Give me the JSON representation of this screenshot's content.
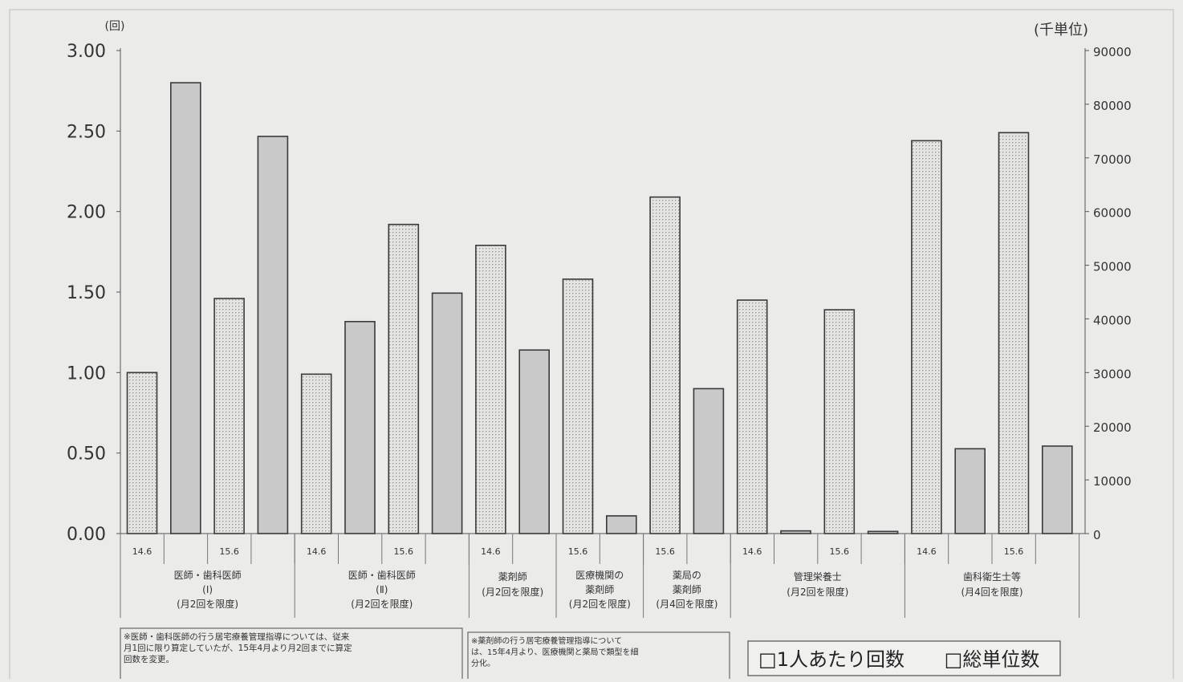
{
  "chart_data": {
    "type": "bar",
    "title": "",
    "y_left": {
      "unit": "(回)",
      "ticks": [
        "3.00",
        "2.50",
        "2.00",
        "1.50",
        "1.00",
        "0.50",
        "0.00"
      ],
      "ylim": [
        0,
        3
      ]
    },
    "y_right": {
      "unit": "(千単位)",
      "ticks": [
        "90000",
        "80000",
        "70000",
        "60000",
        "50000",
        "40000",
        "30000",
        "20000",
        "10000",
        "0"
      ],
      "ylim": [
        0,
        90000
      ]
    },
    "series": [
      {
        "name": "1人あたり回数",
        "axis": "left",
        "pattern": "dotted"
      },
      {
        "name": "総単位数",
        "axis": "right",
        "pattern": "solid"
      }
    ],
    "groups": [
      {
        "label": [
          "医師・歯科医師",
          "(Ⅰ)",
          "(月2回を限度)"
        ],
        "bars": [
          {
            "period": "14.6",
            "series": "1人あたり回数",
            "value": 1.0
          },
          {
            "period": "",
            "series": "総単位数",
            "value": 84000
          },
          {
            "period": "15.6",
            "series": "1人あたり回数",
            "value": 1.46
          },
          {
            "period": "",
            "series": "総単位数",
            "value": 74000
          }
        ]
      },
      {
        "label": [
          "医師・歯科医師",
          "(Ⅱ)",
          "(月2回を限度)"
        ],
        "bars": [
          {
            "period": "14.6",
            "series": "1人あたり回数",
            "value": 0.99
          },
          {
            "period": "",
            "series": "総単位数",
            "value": 39500
          },
          {
            "period": "15.6",
            "series": "1人あたり回数",
            "value": 1.92
          },
          {
            "period": "",
            "series": "総単位数",
            "value": 44800
          }
        ]
      },
      {
        "label": [
          "薬剤師",
          "(月2回を限度)"
        ],
        "bars": [
          {
            "period": "14.6",
            "series": "1人あたり回数",
            "value": 1.79
          },
          {
            "period": "",
            "series": "総単位数",
            "value": 34200
          }
        ]
      },
      {
        "label": [
          "医療機関の",
          "薬剤師",
          "(月2回を限度)"
        ],
        "bars": [
          {
            "period": "15.6",
            "series": "1人あたり回数",
            "value": 1.58
          },
          {
            "period": "",
            "series": "総単位数",
            "value": 3300
          }
        ]
      },
      {
        "label": [
          "薬局の",
          "薬剤師",
          "(月4回を限度)"
        ],
        "bars": [
          {
            "period": "15.6",
            "series": "1人あたり回数",
            "value": 2.09
          },
          {
            "period": "",
            "series": "総単位数",
            "value": 27000
          }
        ]
      },
      {
        "label": [
          "管理栄養士",
          "(月2回を限度)"
        ],
        "bars": [
          {
            "period": "14.6",
            "series": "1人あたり回数",
            "value": 1.45
          },
          {
            "period": "",
            "series": "総単位数",
            "value": 500
          },
          {
            "period": "15.6",
            "series": "1人あたり回数",
            "value": 1.39
          },
          {
            "period": "",
            "series": "総単位数",
            "value": 400
          }
        ]
      },
      {
        "label": [
          "歯科衛生士等",
          "(月4回を限度)"
        ],
        "bars": [
          {
            "period": "14.6",
            "series": "1人あたり回数",
            "value": 2.44
          },
          {
            "period": "",
            "series": "総単位数",
            "value": 15800
          },
          {
            "period": "15.6",
            "series": "1人あたり回数",
            "value": 2.49
          },
          {
            "period": "",
            "series": "総単位数",
            "value": 16300
          }
        ]
      }
    ],
    "legend": {
      "position": "bottom-right",
      "items": [
        "□1人あたり回数",
        "□総単位数"
      ]
    },
    "grid": false,
    "notes": [
      [
        "※医師・歯科医師の行う居宅療養管理指導については、従来",
        "月1回に限り算定していたが、15年4月より月2回までに算定",
        "回数を変更。"
      ],
      [
        "※薬剤師の行う居宅療養管理指導について",
        "は、15年4月より、医療機関と薬局で類型を細",
        "分化。"
      ]
    ]
  },
  "colors": {
    "background": "#ebebea",
    "bar_dotted_fill": "#e4e4e2",
    "bar_dot": "#8d8d8d",
    "bar_solid_fill": "#c9c9c9",
    "stroke": "#3a3a3a"
  }
}
